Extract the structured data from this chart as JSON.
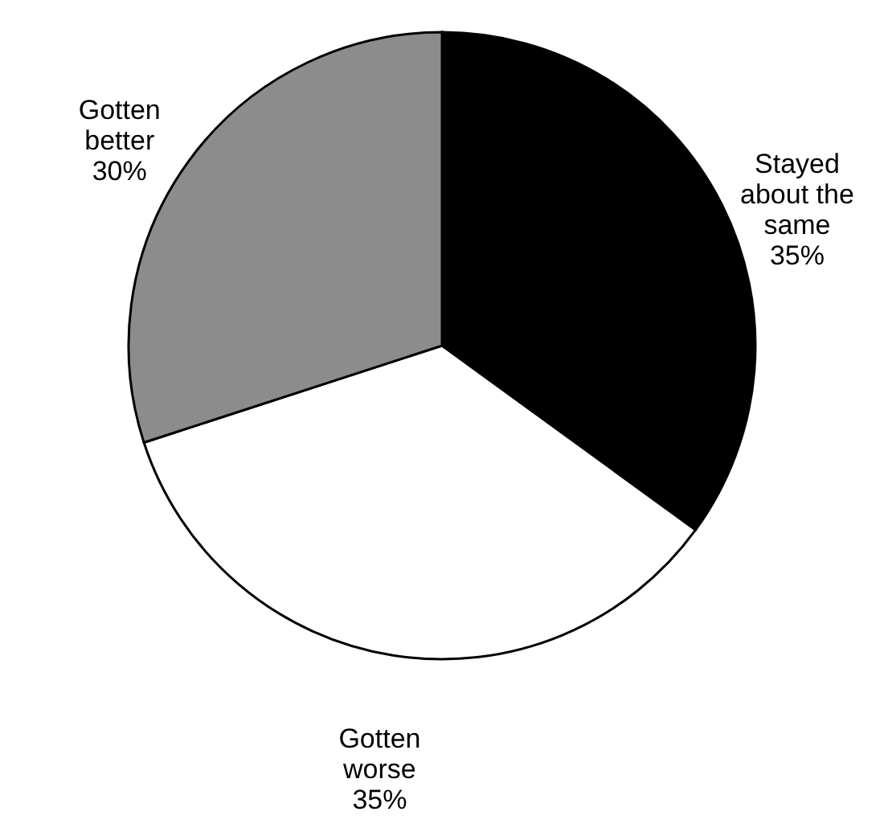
{
  "chart_data": {
    "type": "pie",
    "categories": [
      "Stayed about the same",
      "Gotten worse",
      "Gotten better"
    ],
    "values": [
      35,
      35,
      30
    ],
    "value_labels": [
      "35%",
      "35%",
      "30%"
    ],
    "colors": [
      "#000000",
      "#ffffff",
      "#8c8c8c"
    ]
  }
}
